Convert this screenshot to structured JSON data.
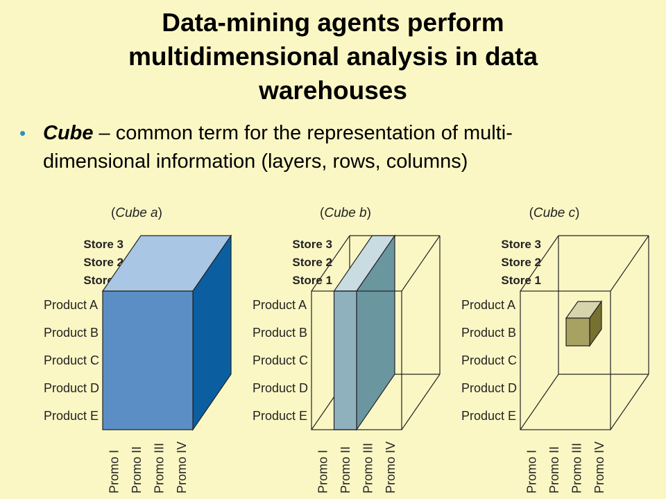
{
  "title": {
    "line1": "Data-mining agents perform",
    "line2": "multidimensional analysis in  data",
    "line3": "warehouses"
  },
  "bullet": {
    "term": "Cube",
    "rest_line1": " – common term for the representation of multi-",
    "line2": "dimensional information (layers, rows, columns)"
  },
  "cubes": [
    {
      "caption_open": "(",
      "caption_name": "Cube a",
      "caption_close": ")"
    },
    {
      "caption_open": "(",
      "caption_name": "Cube b",
      "caption_close": ")"
    },
    {
      "caption_open": "(",
      "caption_name": "Cube c",
      "caption_close": ")"
    }
  ],
  "stores": [
    "Store 3",
    "Store 2",
    "Store 1"
  ],
  "products": [
    "Product A",
    "Product B",
    "Product C",
    "Product D",
    "Product E"
  ],
  "promos": [
    "Promo I",
    "Promo II",
    "Promo III",
    "Promo IV"
  ],
  "colors": {
    "background": "#fbf7c5",
    "bullet": "#2a8fc8",
    "cube_a_front": "#5b8ec4",
    "cube_a_top": "#a9c6e4",
    "cube_a_side": "#0b5fa0",
    "cube_b_slice_front": "#8fb1bd",
    "cube_b_slice_side": "#6a96a0",
    "cube_b_slice_top": "#c9dce2",
    "cube_c_front": "#a7a162",
    "cube_c_top": "#d6d4ad",
    "cube_c_side": "#77712f"
  }
}
